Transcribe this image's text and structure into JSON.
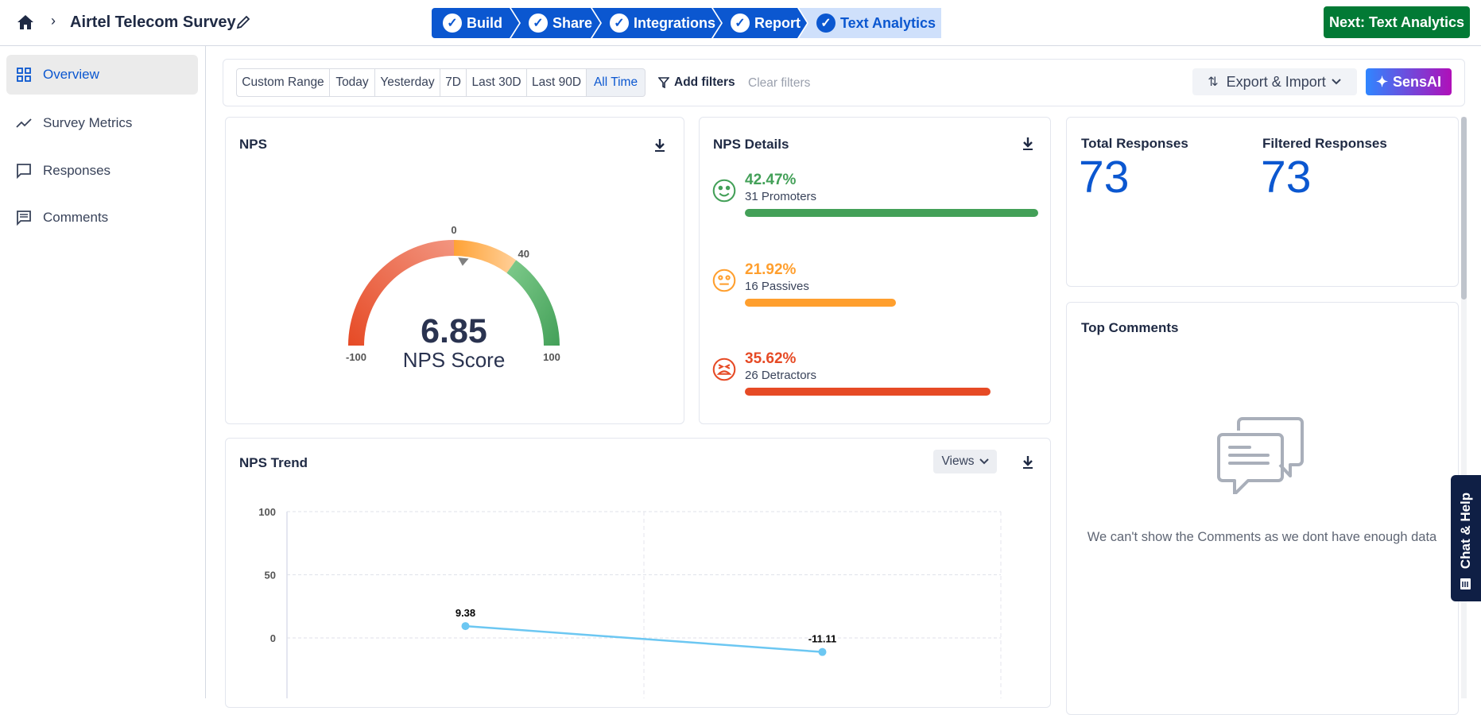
{
  "header": {
    "survey_title": "Airtel Telecom Survey",
    "steps": [
      {
        "label": "Build"
      },
      {
        "label": "Share"
      },
      {
        "label": "Integrations"
      },
      {
        "label": "Report"
      },
      {
        "label": "Text Analytics"
      }
    ],
    "next_button": "Next: Text Analytics"
  },
  "sidebar": {
    "items": [
      {
        "label": "Overview"
      },
      {
        "label": "Survey Metrics"
      },
      {
        "label": "Responses"
      },
      {
        "label": "Comments"
      }
    ]
  },
  "filters": {
    "ranges": [
      "Custom Range",
      "Today",
      "Yesterday",
      "7D",
      "Last 30D",
      "Last 90D",
      "All Time"
    ],
    "selected": "All Time",
    "add_filters": "Add filters",
    "clear_filters": "Clear filters",
    "export_import": "Export & Import",
    "sensai": "SensAI"
  },
  "nps": {
    "title": "NPS",
    "score": "6.85",
    "score_label": "NPS Score",
    "value": 6.85,
    "ticks": [
      "-100",
      "0",
      "40",
      "100"
    ]
  },
  "nps_details": {
    "title": "NPS Details",
    "items": [
      {
        "pct": "42.47%",
        "label": "31 Promoters",
        "value": 42.47,
        "color": "#43a058"
      },
      {
        "pct": "21.92%",
        "label": "16 Passives",
        "value": 21.92,
        "color": "#ff9f2e"
      },
      {
        "pct": "35.62%",
        "label": "26 Detractors",
        "value": 35.62,
        "color": "#e64a25"
      }
    ]
  },
  "responses": {
    "total_label": "Total Responses",
    "total": "73",
    "filtered_label": "Filtered Responses",
    "filtered": "73"
  },
  "top_comments": {
    "title": "Top Comments",
    "empty_message": "We can't show the Comments as we dont have enough data"
  },
  "trend": {
    "title": "NPS Trend",
    "views_label": "Views"
  },
  "chat_help": "Chat & Help",
  "chart_data": {
    "type": "line",
    "title": "NPS Trend",
    "x": [
      1,
      2
    ],
    "series": [
      {
        "name": "NPS",
        "values": [
          9.38,
          -11.11
        ],
        "labels": [
          "9.38",
          "-11.11"
        ]
      }
    ],
    "yticks": [
      "100",
      "50",
      "0"
    ],
    "ylim": [
      -50,
      100
    ],
    "grid": true
  }
}
